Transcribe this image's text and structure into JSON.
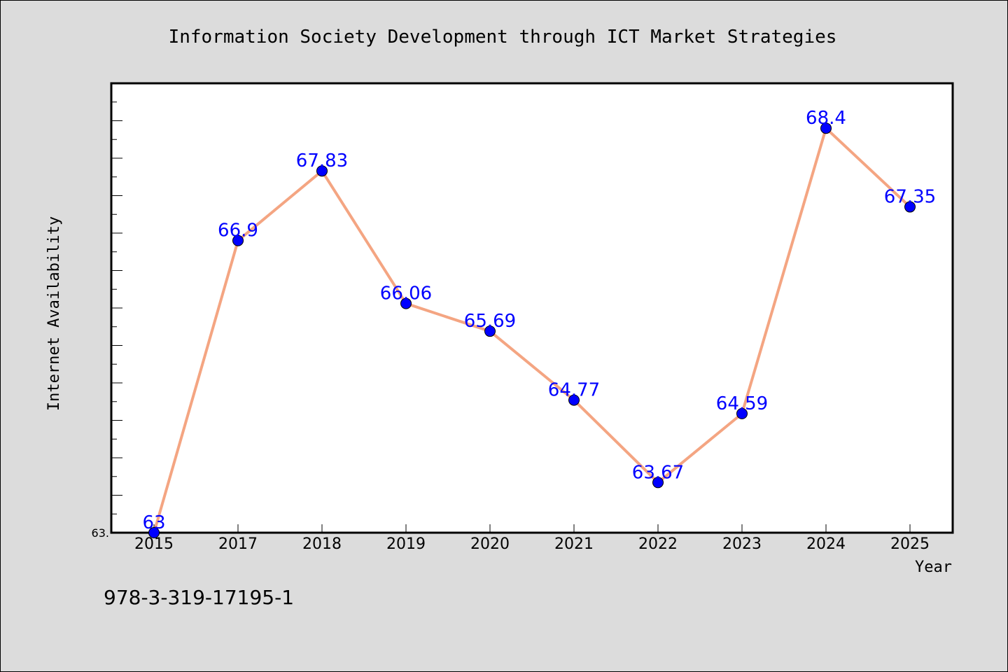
{
  "chart_data": {
    "type": "line",
    "title": "Information Society Development through ICT Market Strategies",
    "xlabel": "Year",
    "ylabel": "Internet Availability",
    "ytick_labels": [
      "63."
    ],
    "categories": [
      "2015",
      "2017",
      "2018",
      "2019",
      "2020",
      "2021",
      "2022",
      "2023",
      "2024",
      "2025"
    ],
    "series": [
      {
        "values": [
          63,
          66.9,
          67.83,
          66.06,
          65.69,
          64.77,
          63.67,
          64.59,
          68.4,
          67.35
        ],
        "labels": [
          "63",
          "66.9",
          "67.83",
          "66.06",
          "65.69",
          "64.77",
          "63.67",
          "64.59",
          "68.4",
          "67.35"
        ]
      }
    ],
    "ylim": [
      63,
      69
    ],
    "grid": false,
    "legend": "none",
    "colors": {
      "line": "#f4a582",
      "marker": "#0000ff",
      "data_label": "#0000ff",
      "plot_background": "#ffffff",
      "figure_background": "#dcdcdc"
    }
  },
  "footer": {
    "isbn": "978-3-319-17195-1"
  }
}
